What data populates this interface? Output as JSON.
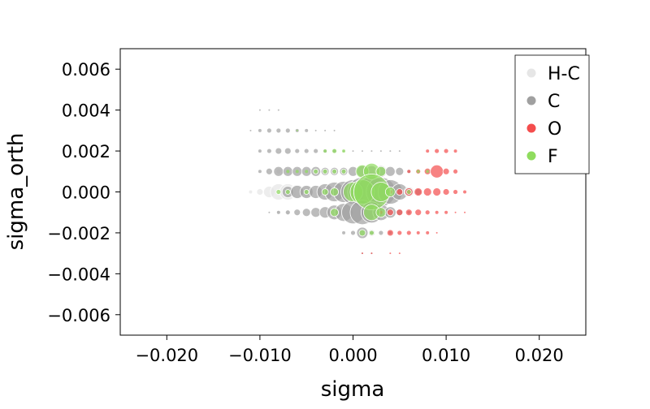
{
  "chart_data": {
    "type": "scatter",
    "title": "",
    "xlabel": "sigma",
    "ylabel": "sigma_orth",
    "xlim": [
      -0.025,
      0.025
    ],
    "ylim": [
      -0.007,
      0.007
    ],
    "x_ticks": [
      -0.02,
      -0.01,
      0.0,
      0.01,
      0.02
    ],
    "y_ticks": [
      -0.006,
      -0.004,
      -0.002,
      0.0,
      0.002,
      0.004,
      0.006
    ],
    "x_tick_labels": [
      "−0.020",
      "−0.010",
      "0.000",
      "0.010",
      "0.020"
    ],
    "y_tick_labels": [
      "−0.006",
      "−0.004",
      "−0.002",
      "0.000",
      "0.002",
      "0.004",
      "0.006"
    ],
    "grid": false,
    "legend_position": "top-right",
    "marker_opacity": 0.7,
    "series": [
      {
        "name": "H-C",
        "color": "#e6e6e6",
        "points": [
          {
            "x": -0.011,
            "y": 0.0,
            "size": 2
          },
          {
            "x": -0.01,
            "y": 0.0,
            "size": 4
          },
          {
            "x": -0.009,
            "y": 0.0,
            "size": 7
          },
          {
            "x": -0.008,
            "y": 0.0,
            "size": 10
          },
          {
            "x": -0.007,
            "y": 0.0,
            "size": 10
          },
          {
            "x": -0.006,
            "y": 0.0,
            "size": 9
          },
          {
            "x": -0.005,
            "y": 0.0,
            "size": 7
          },
          {
            "x": -0.008,
            "y": 0.001,
            "size": 3
          },
          {
            "x": -0.007,
            "y": 0.001,
            "size": 3
          },
          {
            "x": -0.008,
            "y": -0.001,
            "size": 2
          },
          {
            "x": -0.007,
            "y": -0.001,
            "size": 2
          }
        ]
      },
      {
        "name": "C",
        "color": "#a0a0a0",
        "points": [
          {
            "x": -0.01,
            "y": 0.004,
            "size": 1
          },
          {
            "x": -0.009,
            "y": 0.004,
            "size": 1
          },
          {
            "x": -0.008,
            "y": 0.004,
            "size": 1
          },
          {
            "x": -0.011,
            "y": 0.003,
            "size": 1
          },
          {
            "x": -0.01,
            "y": 0.003,
            "size": 2
          },
          {
            "x": -0.009,
            "y": 0.003,
            "size": 3
          },
          {
            "x": -0.008,
            "y": 0.003,
            "size": 3
          },
          {
            "x": -0.007,
            "y": 0.003,
            "size": 3
          },
          {
            "x": -0.006,
            "y": 0.003,
            "size": 2
          },
          {
            "x": -0.005,
            "y": 0.003,
            "size": 2
          },
          {
            "x": -0.004,
            "y": 0.003,
            "size": 1
          },
          {
            "x": -0.003,
            "y": 0.003,
            "size": 1
          },
          {
            "x": -0.002,
            "y": 0.003,
            "size": 1
          },
          {
            "x": -0.01,
            "y": 0.002,
            "size": 2
          },
          {
            "x": -0.009,
            "y": 0.002,
            "size": 3
          },
          {
            "x": -0.008,
            "y": 0.002,
            "size": 4
          },
          {
            "x": -0.007,
            "y": 0.002,
            "size": 4
          },
          {
            "x": -0.006,
            "y": 0.002,
            "size": 3
          },
          {
            "x": -0.005,
            "y": 0.002,
            "size": 3
          },
          {
            "x": -0.004,
            "y": 0.002,
            "size": 3
          },
          {
            "x": -0.003,
            "y": 0.002,
            "size": 2
          },
          {
            "x": -0.002,
            "y": 0.002,
            "size": 2
          },
          {
            "x": -0.001,
            "y": 0.002,
            "size": 1
          },
          {
            "x": 0.0,
            "y": 0.002,
            "size": 1
          },
          {
            "x": 0.001,
            "y": 0.002,
            "size": 1
          },
          {
            "x": 0.002,
            "y": 0.002,
            "size": 1
          },
          {
            "x": 0.003,
            "y": 0.002,
            "size": 1
          },
          {
            "x": 0.004,
            "y": 0.002,
            "size": 1
          },
          {
            "x": 0.005,
            "y": 0.002,
            "size": 1
          },
          {
            "x": -0.01,
            "y": 0.001,
            "size": 2
          },
          {
            "x": -0.009,
            "y": 0.001,
            "size": 4
          },
          {
            "x": -0.008,
            "y": 0.001,
            "size": 6
          },
          {
            "x": -0.007,
            "y": 0.001,
            "size": 6
          },
          {
            "x": -0.006,
            "y": 0.001,
            "size": 6
          },
          {
            "x": -0.005,
            "y": 0.001,
            "size": 6
          },
          {
            "x": -0.004,
            "y": 0.001,
            "size": 6
          },
          {
            "x": -0.003,
            "y": 0.001,
            "size": 5
          },
          {
            "x": -0.002,
            "y": 0.001,
            "size": 5
          },
          {
            "x": -0.001,
            "y": 0.001,
            "size": 5
          },
          {
            "x": 0.0,
            "y": 0.001,
            "size": 6
          },
          {
            "x": 0.001,
            "y": 0.001,
            "size": 7
          },
          {
            "x": 0.002,
            "y": 0.001,
            "size": 7
          },
          {
            "x": 0.003,
            "y": 0.001,
            "size": 7
          },
          {
            "x": 0.004,
            "y": 0.001,
            "size": 6
          },
          {
            "x": 0.005,
            "y": 0.001,
            "size": 5
          },
          {
            "x": 0.006,
            "y": 0.001,
            "size": 2
          },
          {
            "x": -0.007,
            "y": 0.0,
            "size": 7
          },
          {
            "x": -0.006,
            "y": 0.0,
            "size": 8
          },
          {
            "x": -0.005,
            "y": 0.0,
            "size": 8
          },
          {
            "x": -0.004,
            "y": 0.0,
            "size": 8
          },
          {
            "x": -0.003,
            "y": 0.0,
            "size": 10
          },
          {
            "x": -0.002,
            "y": 0.0,
            "size": 12
          },
          {
            "x": -0.001,
            "y": 0.0,
            "size": 13
          },
          {
            "x": 0.0,
            "y": 0.0,
            "size": 15
          },
          {
            "x": 0.001,
            "y": 0.0,
            "size": 18
          },
          {
            "x": 0.002,
            "y": 0.0,
            "size": 19
          },
          {
            "x": 0.003,
            "y": 0.0,
            "size": 18
          },
          {
            "x": 0.004,
            "y": 0.0,
            "size": 15
          },
          {
            "x": 0.005,
            "y": 0.0,
            "size": 10
          },
          {
            "x": 0.006,
            "y": 0.0,
            "size": 6
          },
          {
            "x": 0.007,
            "y": 0.0,
            "size": 4
          },
          {
            "x": -0.009,
            "y": -0.001,
            "size": 1
          },
          {
            "x": -0.008,
            "y": -0.001,
            "size": 2
          },
          {
            "x": -0.007,
            "y": -0.001,
            "size": 3
          },
          {
            "x": -0.006,
            "y": -0.001,
            "size": 4
          },
          {
            "x": -0.005,
            "y": -0.001,
            "size": 5
          },
          {
            "x": -0.004,
            "y": -0.001,
            "size": 6
          },
          {
            "x": -0.003,
            "y": -0.001,
            "size": 7
          },
          {
            "x": -0.002,
            "y": -0.001,
            "size": 9
          },
          {
            "x": -0.001,
            "y": -0.001,
            "size": 11
          },
          {
            "x": 0.0,
            "y": -0.001,
            "size": 14
          },
          {
            "x": 0.001,
            "y": -0.001,
            "size": 15
          },
          {
            "x": 0.002,
            "y": -0.001,
            "size": 13
          },
          {
            "x": 0.003,
            "y": -0.001,
            "size": 10
          },
          {
            "x": 0.004,
            "y": -0.001,
            "size": 7
          },
          {
            "x": 0.005,
            "y": -0.001,
            "size": 4
          },
          {
            "x": 0.006,
            "y": -0.001,
            "size": 2
          },
          {
            "x": -0.001,
            "y": -0.002,
            "size": 2
          },
          {
            "x": 0.0,
            "y": -0.002,
            "size": 3
          },
          {
            "x": 0.001,
            "y": -0.002,
            "size": 7
          },
          {
            "x": 0.002,
            "y": -0.002,
            "size": 4
          },
          {
            "x": 0.003,
            "y": -0.002,
            "size": 3
          },
          {
            "x": 0.004,
            "y": -0.002,
            "size": 2
          },
          {
            "x": 0.001,
            "y": -0.003,
            "size": 1
          },
          {
            "x": 0.002,
            "y": -0.003,
            "size": 1
          }
        ]
      },
      {
        "name": "O",
        "color": "#f44d4d",
        "points": [
          {
            "x": 0.008,
            "y": 0.002,
            "size": 2
          },
          {
            "x": 0.009,
            "y": 0.002,
            "size": 3
          },
          {
            "x": 0.01,
            "y": 0.002,
            "size": 3
          },
          {
            "x": 0.011,
            "y": 0.002,
            "size": 2
          },
          {
            "x": 0.006,
            "y": 0.001,
            "size": 2
          },
          {
            "x": 0.007,
            "y": 0.001,
            "size": 3
          },
          {
            "x": 0.008,
            "y": 0.001,
            "size": 4
          },
          {
            "x": 0.009,
            "y": 0.001,
            "size": 8
          },
          {
            "x": 0.01,
            "y": 0.001,
            "size": 4
          },
          {
            "x": 0.011,
            "y": 0.001,
            "size": 3
          },
          {
            "x": 0.004,
            "y": 0.0,
            "size": 3
          },
          {
            "x": 0.005,
            "y": 0.0,
            "size": 4
          },
          {
            "x": 0.006,
            "y": 0.0,
            "size": 5
          },
          {
            "x": 0.007,
            "y": 0.0,
            "size": 5
          },
          {
            "x": 0.008,
            "y": 0.0,
            "size": 5
          },
          {
            "x": 0.009,
            "y": 0.0,
            "size": 5
          },
          {
            "x": 0.01,
            "y": 0.0,
            "size": 4
          },
          {
            "x": 0.011,
            "y": 0.0,
            "size": 3
          },
          {
            "x": 0.012,
            "y": 0.0,
            "size": 2
          },
          {
            "x": 0.003,
            "y": -0.001,
            "size": 2
          },
          {
            "x": 0.004,
            "y": -0.001,
            "size": 4
          },
          {
            "x": 0.005,
            "y": -0.001,
            "size": 4
          },
          {
            "x": 0.006,
            "y": -0.001,
            "size": 4
          },
          {
            "x": 0.007,
            "y": -0.001,
            "size": 4
          },
          {
            "x": 0.008,
            "y": -0.001,
            "size": 3
          },
          {
            "x": 0.009,
            "y": -0.001,
            "size": 2
          },
          {
            "x": 0.01,
            "y": -0.001,
            "size": 2
          },
          {
            "x": 0.011,
            "y": -0.001,
            "size": 1
          },
          {
            "x": 0.012,
            "y": -0.001,
            "size": 1
          },
          {
            "x": 0.004,
            "y": -0.002,
            "size": 4
          },
          {
            "x": 0.005,
            "y": -0.002,
            "size": 3
          },
          {
            "x": 0.006,
            "y": -0.002,
            "size": 3
          },
          {
            "x": 0.007,
            "y": -0.002,
            "size": 2
          },
          {
            "x": 0.008,
            "y": -0.002,
            "size": 2
          },
          {
            "x": 0.009,
            "y": -0.002,
            "size": 1
          },
          {
            "x": 0.001,
            "y": -0.003,
            "size": 1
          },
          {
            "x": 0.002,
            "y": -0.003,
            "size": 1
          },
          {
            "x": 0.004,
            "y": -0.003,
            "size": 1
          },
          {
            "x": 0.005,
            "y": -0.003,
            "size": 1
          }
        ]
      },
      {
        "name": "F",
        "color": "#8fdc5e",
        "points": [
          {
            "x": -0.006,
            "y": 0.003,
            "size": 1
          },
          {
            "x": -0.003,
            "y": 0.002,
            "size": 2
          },
          {
            "x": -0.002,
            "y": 0.002,
            "size": 3
          },
          {
            "x": -0.001,
            "y": 0.002,
            "size": 2
          },
          {
            "x": -0.007,
            "y": 0.001,
            "size": 2
          },
          {
            "x": -0.006,
            "y": 0.001,
            "size": 2
          },
          {
            "x": -0.005,
            "y": 0.001,
            "size": 2
          },
          {
            "x": -0.004,
            "y": 0.001,
            "size": 3
          },
          {
            "x": -0.003,
            "y": 0.001,
            "size": 3
          },
          {
            "x": -0.002,
            "y": 0.001,
            "size": 3
          },
          {
            "x": -0.001,
            "y": 0.001,
            "size": 3
          },
          {
            "x": 0.001,
            "y": 0.001,
            "size": 8
          },
          {
            "x": 0.002,
            "y": 0.001,
            "size": 10
          },
          {
            "x": 0.003,
            "y": 0.001,
            "size": 6
          },
          {
            "x": 0.007,
            "y": 0.001,
            "size": 2
          },
          {
            "x": 0.008,
            "y": 0.001,
            "size": 2
          },
          {
            "x": -0.008,
            "y": 0.0,
            "size": 3
          },
          {
            "x": -0.007,
            "y": 0.0,
            "size": 3
          },
          {
            "x": -0.005,
            "y": 0.0,
            "size": 3
          },
          {
            "x": -0.003,
            "y": 0.0,
            "size": 4
          },
          {
            "x": -0.002,
            "y": 0.0,
            "size": 5
          },
          {
            "x": 0.0,
            "y": 0.0,
            "size": 12
          },
          {
            "x": 0.001,
            "y": 0.0,
            "size": 15
          },
          {
            "x": 0.002,
            "y": 0.0,
            "size": 22
          },
          {
            "x": 0.003,
            "y": 0.0,
            "size": 12
          },
          {
            "x": 0.004,
            "y": 0.0,
            "size": 6
          },
          {
            "x": 0.006,
            "y": 0.0,
            "size": 3
          },
          {
            "x": -0.002,
            "y": -0.001,
            "size": 5
          },
          {
            "x": 0.002,
            "y": -0.001,
            "size": 10
          },
          {
            "x": 0.003,
            "y": -0.001,
            "size": 6
          },
          {
            "x": 0.001,
            "y": -0.002,
            "size": 4
          },
          {
            "x": 0.002,
            "y": -0.002,
            "size": 3
          }
        ]
      }
    ]
  }
}
